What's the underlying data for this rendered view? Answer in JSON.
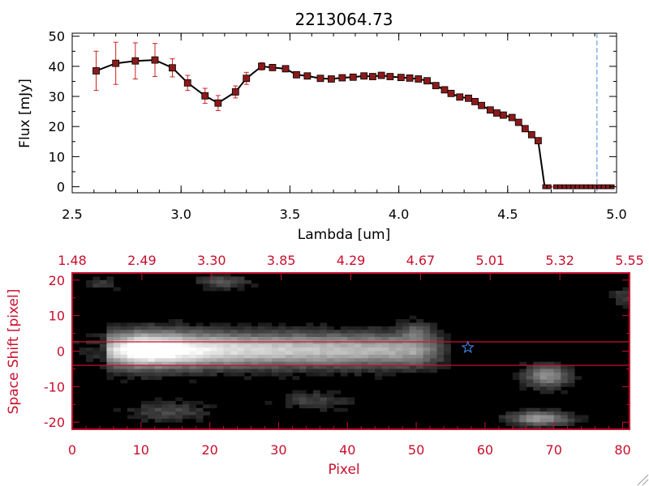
{
  "chart_data": [
    {
      "type": "line",
      "title": "2213064.73",
      "xlabel": "Lambda [um]",
      "ylabel": "Flux [mJy]",
      "xlim": [
        2.5,
        5.0
      ],
      "ylim": [
        -2,
        51
      ],
      "x_ticks": [
        "2.5",
        "3.0",
        "3.5",
        "4.0",
        "4.5",
        "5.0"
      ],
      "y_ticks": [
        "0",
        "10",
        "20",
        "30",
        "40",
        "50"
      ],
      "series": [
        {
          "x": [
            2.61,
            2.7,
            2.79,
            2.88,
            2.96,
            3.03,
            3.11,
            3.17,
            3.25,
            3.3,
            3.37,
            3.42,
            3.48,
            3.53,
            3.58,
            3.64,
            3.69,
            3.74,
            3.79,
            3.84,
            3.88,
            3.92,
            3.96,
            4.01,
            4.05,
            4.09,
            4.13,
            4.17,
            4.21,
            4.24,
            4.28,
            4.32,
            4.35,
            4.38,
            4.42,
            4.45,
            4.48,
            4.52,
            4.55,
            4.58,
            4.61,
            4.64,
            4.67,
            4.69,
            4.72,
            4.74,
            4.76,
            4.78,
            4.8,
            4.82,
            4.84,
            4.86,
            4.88,
            4.9,
            4.92,
            4.94,
            4.96,
            4.98
          ],
          "y": [
            38.5,
            41.0,
            41.8,
            42.1,
            39.5,
            34.5,
            30.2,
            27.8,
            31.5,
            36.0,
            40.0,
            39.6,
            39.2,
            37.2,
            36.8,
            36.0,
            35.8,
            36.2,
            36.4,
            36.8,
            36.6,
            37.0,
            36.6,
            36.3,
            36.1,
            35.8,
            35.2,
            33.6,
            32.2,
            31.0,
            29.8,
            29.4,
            28.3,
            27.0,
            25.5,
            24.5,
            23.8,
            23.0,
            21.4,
            19.3,
            17.3,
            15.3,
            0,
            0,
            0,
            0,
            0,
            0,
            0,
            0,
            0,
            0,
            0,
            0,
            0,
            0,
            0,
            0
          ],
          "y_err": [
            6.5,
            7.0,
            6.0,
            5.5,
            3.0,
            2.5,
            2.5,
            2.5,
            2.0,
            2.0,
            1.2,
            1.0,
            1.0,
            0.8,
            0.8,
            0.8,
            0.8,
            0.8,
            0.8,
            0.8,
            0.8,
            0.8,
            0.8,
            0.8,
            0.8,
            0.8,
            0.8,
            0.8,
            0.8,
            0.8,
            0.8,
            0.8,
            0.8,
            0.8,
            0.8,
            0.8,
            0.8,
            0.8,
            0.8,
            0.8,
            0.8,
            0.8,
            0,
            0,
            0,
            0,
            0,
            0,
            0,
            0,
            0,
            0,
            0,
            0,
            0,
            0,
            0,
            0
          ]
        }
      ],
      "vertical_marker": {
        "x": 4.91,
        "color": "#4a90d9",
        "style": "dashed"
      },
      "colors": {
        "line": "#000000",
        "marker": "#8b1a1a",
        "error": "#d11f1f"
      },
      "grid": false
    },
    {
      "type": "heatmap",
      "xlabel": "Pixel",
      "ylabel": "Space Shift [pixel]",
      "xlim": [
        0,
        81
      ],
      "ylim": [
        -22,
        22
      ],
      "x_ticks": [
        "0",
        "10",
        "20",
        "30",
        "40",
        "50",
        "60",
        "70",
        "80"
      ],
      "y_ticks": [
        "-20",
        "-10",
        "0",
        "10",
        "20"
      ],
      "top_axis_ticks": [
        "1.48",
        "2.49",
        "3.30",
        "3.85",
        "4.29",
        "4.67",
        "5.01",
        "5.32",
        "5.55"
      ],
      "extraction_band": [
        -3,
        3
      ],
      "star_marker": {
        "x": 57.5,
        "y": 1
      },
      "colormap": "grayscale",
      "colors": {
        "axis": "#c8102e",
        "band": "#c8102e",
        "star": "#3a7bd5"
      }
    }
  ]
}
